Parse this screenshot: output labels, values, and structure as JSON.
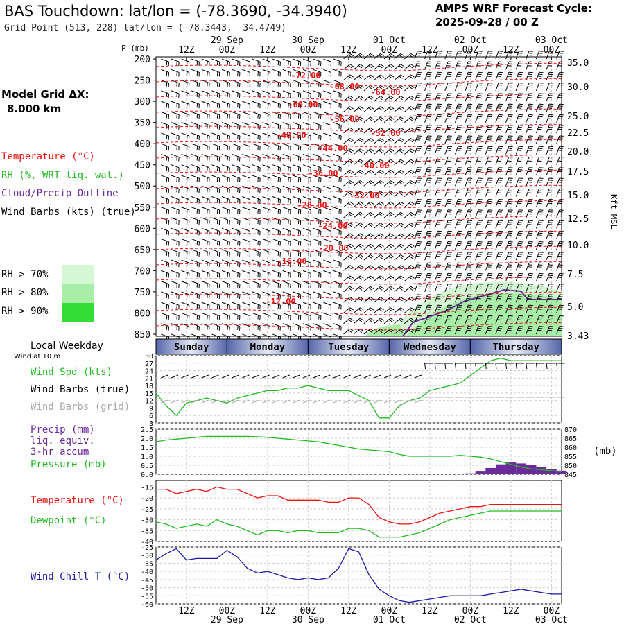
{
  "header": {
    "title": "BAS Touchdown:  lat/lon = (-78.3690, -34.3940)",
    "subtitle": "Grid Point (513, 228) lat/lon = (-78.3443, -34.4749)",
    "cycle_line1": "AMPS WRF Forecast Cycle:",
    "cycle_line2": "2025-09-28 / 00  Z"
  },
  "sidebar": {
    "grid_label": "Model Grid ΔX:",
    "grid_value": "8.000 km",
    "legend": {
      "temperature": "Temperature (°C)",
      "rh": "RH (%, WRT liq. wat.)",
      "cloud": "Cloud/Precip Outline",
      "wind": "Wind Barbs (kts) (true)"
    },
    "rh_legend": [
      {
        "label": "RH > 70%",
        "color": "#d4f7d4"
      },
      {
        "label": "RH > 80%",
        "color": "#a8eda8"
      },
      {
        "label": "RH > 90%",
        "color": "#33dd33"
      }
    ],
    "local_weekday": "Local Weekday",
    "wind_at_10m": "Wind at 10 m",
    "p_unit": "P (mb)",
    "kft_label": "Kft MSL",
    "mb_label": "(mb)"
  },
  "colors": {
    "temperature": "#ee1111",
    "green": "#22bb22",
    "purple": "#6a2a9a",
    "blue": "#1a1aaa",
    "grey": "#aaaaaa"
  },
  "chart_data": [
    {
      "id": "profile",
      "type": "heatmap",
      "title": "Time-height cross section",
      "x_axis_top": {
        "hours": [
          "12Z",
          "00Z",
          "12Z",
          "00Z",
          "12Z",
          "00Z",
          "12Z",
          "00Z",
          "12Z",
          "00Z"
        ],
        "dates": [
          "29 Sep",
          "30 Sep",
          "01 Oct",
          "02 Oct",
          "03 Oct"
        ]
      },
      "pressure_levels_mb": [
        200,
        250,
        300,
        350,
        400,
        450,
        500,
        550,
        600,
        650,
        700,
        750,
        800,
        850
      ],
      "height_kft": [
        35.0,
        30.0,
        25.0,
        22.5,
        20.0,
        17.5,
        15.0,
        12.5,
        10.0,
        7.5,
        5.0,
        3.43
      ],
      "temperature_labels": [
        "-72.00",
        "-68.00",
        "-64.00",
        "-60.00",
        "-56.00",
        "-52.00",
        "-48.00",
        "-44.00",
        "-40.00",
        "-36.00",
        "-32.00",
        "-28.00",
        "-24.00",
        "-20.00",
        "-16.00",
        "-12.00"
      ]
    },
    {
      "id": "weekday",
      "type": "table",
      "days": [
        "Sunday",
        "Monday",
        "Tuesday",
        "Wednesday",
        "Thursday"
      ]
    },
    {
      "id": "wind",
      "type": "line",
      "series_labels": [
        "Wind Spd (kts)",
        "Wind Barbs (true)",
        "Wind Barbs (grid)"
      ],
      "yticks": [
        3,
        6,
        9,
        12,
        15,
        18,
        21,
        24,
        27,
        30
      ],
      "ylim": [
        3,
        30
      ],
      "x_hours": [
        0,
        3,
        6,
        9,
        12,
        15,
        18,
        21,
        24,
        27,
        30,
        33,
        36,
        39,
        42,
        45,
        48,
        51,
        54,
        57,
        60,
        63,
        66,
        69,
        72,
        75,
        78,
        81,
        84,
        87,
        90,
        93,
        96,
        99,
        102,
        105,
        108,
        111,
        114,
        117,
        120
      ],
      "speed_kts": [
        15,
        10,
        6,
        11,
        12,
        13,
        12,
        11,
        13,
        14,
        15,
        16,
        16,
        17,
        17,
        18,
        17,
        16,
        16,
        16,
        14,
        12,
        5,
        5,
        10,
        12,
        13,
        16,
        17,
        18,
        19,
        22,
        25,
        28,
        29,
        28,
        28,
        28,
        28,
        28,
        28
      ]
    },
    {
      "id": "precip",
      "type": "bar",
      "series_labels": [
        "Precip (mm)",
        "liq. equiv.",
        "3-hr accum",
        "Pressure (mb)"
      ],
      "yticks_left": [
        "0.0",
        "0.5",
        "1.0",
        "1.5",
        "2.0",
        "2.5"
      ],
      "yticks_right": [
        "845",
        "850",
        "855",
        "860",
        "865",
        "870"
      ],
      "ylim_precip": [
        0,
        2.5
      ],
      "ylim_pressure": [
        845,
        870
      ],
      "x_hours": [
        0,
        3,
        6,
        9,
        12,
        15,
        18,
        21,
        24,
        27,
        30,
        33,
        36,
        39,
        42,
        45,
        48,
        51,
        54,
        57,
        60,
        63,
        66,
        69,
        72,
        75,
        78,
        81,
        84,
        87,
        90,
        93,
        96,
        99,
        102,
        105,
        108,
        111,
        114,
        117,
        120
      ],
      "pressure_mb": [
        863,
        864,
        864.5,
        865,
        865.5,
        866,
        866,
        866,
        866,
        866,
        865.8,
        865.5,
        865,
        864.5,
        864,
        863.5,
        863,
        862,
        861,
        860,
        859,
        858.5,
        858,
        857.5,
        856,
        855,
        855,
        855,
        855,
        855,
        855.5,
        855,
        854.5,
        853.5,
        852,
        850.5,
        849,
        848,
        847.5,
        847,
        846.5
      ],
      "precip_mm": [
        0,
        0,
        0,
        0,
        0,
        0,
        0,
        0,
        0,
        0,
        0,
        0,
        0,
        0,
        0,
        0,
        0,
        0,
        0,
        0,
        0,
        0,
        0,
        0,
        0,
        0,
        0,
        0,
        0,
        0,
        0,
        0.05,
        0.15,
        0.35,
        0.55,
        0.65,
        0.6,
        0.5,
        0.4,
        0.3,
        0.2
      ]
    },
    {
      "id": "temperature",
      "type": "line",
      "series_labels": [
        "Temperature (°C)",
        "Dewpoint (°C)"
      ],
      "yticks": [
        -40,
        -35,
        -30,
        -25,
        -20,
        -15
      ],
      "ylim": [
        -40,
        -12
      ],
      "x_hours": [
        0,
        3,
        6,
        9,
        12,
        15,
        18,
        21,
        24,
        27,
        30,
        33,
        36,
        39,
        42,
        45,
        48,
        51,
        54,
        57,
        60,
        63,
        66,
        69,
        72,
        75,
        78,
        81,
        84,
        87,
        90,
        93,
        96,
        99,
        102,
        105,
        108,
        111,
        114,
        117,
        120
      ],
      "temperature_c": [
        -16,
        -16,
        -18,
        -17,
        -16,
        -17,
        -15,
        -16,
        -16,
        -18,
        -20,
        -19,
        -19,
        -21,
        -21,
        -21,
        -21,
        -22,
        -22,
        -20,
        -20,
        -23,
        -29,
        -31,
        -32,
        -32,
        -31,
        -29,
        -27,
        -26,
        -25,
        -24,
        -24,
        -23,
        -23,
        -23,
        -23,
        -23,
        -23,
        -23,
        -23
      ],
      "dewpoint_c": [
        -31,
        -32,
        -34,
        -33,
        -32,
        -33,
        -30,
        -32,
        -33,
        -35,
        -37,
        -35,
        -35,
        -36,
        -35,
        -35,
        -36,
        -36,
        -36,
        -34,
        -34,
        -35,
        -38,
        -38,
        -38,
        -37,
        -36,
        -34,
        -32,
        -30,
        -29,
        -28,
        -27,
        -26,
        -26,
        -26,
        -26,
        -26,
        -26,
        -26,
        -26
      ]
    },
    {
      "id": "windchill",
      "type": "line",
      "series_labels": [
        "Wind Chill T (°C)"
      ],
      "yticks": [
        -60,
        -55,
        -50,
        -45,
        -40,
        -35,
        -30,
        -25
      ],
      "ylim": [
        -60,
        -25
      ],
      "x_axis_bottom": {
        "hours": [
          "12Z",
          "00Z",
          "12Z",
          "00Z",
          "12Z",
          "00Z",
          "12Z",
          "00Z",
          "12Z",
          "00Z"
        ],
        "dates": [
          "29 Sep",
          "30 Sep",
          "01 Oct",
          "02 Oct",
          "03 Oct"
        ]
      },
      "x_hours": [
        0,
        3,
        6,
        9,
        12,
        15,
        18,
        21,
        24,
        27,
        30,
        33,
        36,
        39,
        42,
        45,
        48,
        51,
        54,
        57,
        60,
        63,
        66,
        69,
        72,
        75,
        78,
        81,
        84,
        87,
        90,
        93,
        96,
        99,
        102,
        105,
        108,
        111,
        114,
        117,
        120
      ],
      "windchill_c": [
        -33,
        -29,
        -26,
        -33,
        -32,
        -32,
        -32,
        -27,
        -31,
        -38,
        -41,
        -40,
        -42,
        -44,
        -45,
        -44,
        -45,
        -44,
        -38,
        -26,
        -28,
        -42,
        -51,
        -55,
        -58,
        -59,
        -58,
        -57,
        -56,
        -55,
        -55,
        -55,
        -55,
        -54,
        -53,
        -52,
        -51,
        -52,
        -53,
        -54,
        -54
      ]
    }
  ]
}
